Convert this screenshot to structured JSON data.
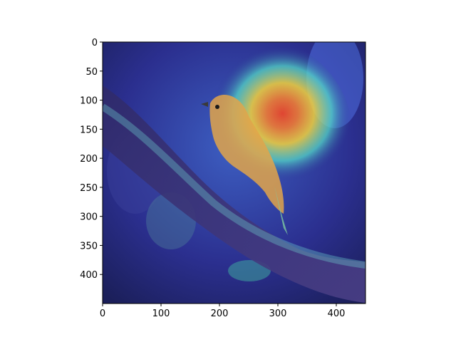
{
  "figure": {
    "image_description_icon": "bird-on-branch-heatmap-overlay",
    "x_axis": {
      "range": [
        0,
        450
      ],
      "ticks": [
        0,
        100,
        200,
        300,
        400
      ]
    },
    "y_axis": {
      "range": [
        0,
        450
      ],
      "inverted": true,
      "ticks": [
        0,
        50,
        100,
        150,
        200,
        250,
        300,
        350,
        400
      ]
    },
    "colors": {
      "background": "#ffffff",
      "base_tone": "#2b2f8f",
      "heat_red": "#e8452c",
      "heat_yellow": "#f3d23c",
      "heat_cyan": "#55e0c8"
    }
  }
}
